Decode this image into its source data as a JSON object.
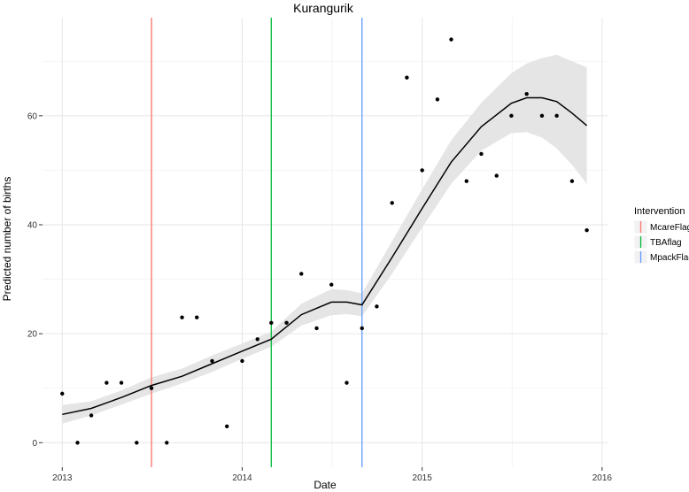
{
  "chart_data": {
    "type": "scatter",
    "title": "Kurangurik",
    "xlabel": "Date",
    "ylabel": "Predicted number of births",
    "x_ticks": [
      "2013",
      "2014",
      "2015",
      "2016"
    ],
    "y_ticks": [
      "0",
      "20",
      "40",
      "60"
    ],
    "xlim": [
      "2012-11-22",
      "2016-01-12"
    ],
    "ylim": [
      -4.5,
      78
    ],
    "grid": true,
    "points": [
      {
        "x": "2013-01",
        "y": 9
      },
      {
        "x": "2013-02",
        "y": 0
      },
      {
        "x": "2013-03",
        "y": 5
      },
      {
        "x": "2013-04",
        "y": 11
      },
      {
        "x": "2013-05",
        "y": 11
      },
      {
        "x": "2013-06",
        "y": 0
      },
      {
        "x": "2013-07",
        "y": 10
      },
      {
        "x": "2013-08",
        "y": 0
      },
      {
        "x": "2013-09",
        "y": 23
      },
      {
        "x": "2013-10",
        "y": 23
      },
      {
        "x": "2013-11",
        "y": 15
      },
      {
        "x": "2013-12",
        "y": 3
      },
      {
        "x": "2014-01",
        "y": 15
      },
      {
        "x": "2014-02",
        "y": 19
      },
      {
        "x": "2014-03",
        "y": 22
      },
      {
        "x": "2014-04",
        "y": 22
      },
      {
        "x": "2014-05",
        "y": 31
      },
      {
        "x": "2014-06",
        "y": 21
      },
      {
        "x": "2014-07",
        "y": 29
      },
      {
        "x": "2014-08",
        "y": 11
      },
      {
        "x": "2014-09",
        "y": 21
      },
      {
        "x": "2014-10",
        "y": 25
      },
      {
        "x": "2014-11",
        "y": 44
      },
      {
        "x": "2014-12",
        "y": 67
      },
      {
        "x": "2015-01",
        "y": 50
      },
      {
        "x": "2015-02",
        "y": 63
      },
      {
        "x": "2015-03",
        "y": 74
      },
      {
        "x": "2015-04",
        "y": 48
      },
      {
        "x": "2015-05",
        "y": 53
      },
      {
        "x": "2015-06",
        "y": 49
      },
      {
        "x": "2015-07",
        "y": 60
      },
      {
        "x": "2015-08",
        "y": 64
      },
      {
        "x": "2015-09",
        "y": 60
      },
      {
        "x": "2015-10",
        "y": 60
      },
      {
        "x": "2015-11",
        "y": 48
      },
      {
        "x": "2015-12",
        "y": 39
      }
    ],
    "fit": {
      "x": [
        "2013-01",
        "2013-03",
        "2013-05",
        "2013-07",
        "2013-09",
        "2013-11",
        "2014-01",
        "2014-03",
        "2014-05",
        "2014-07",
        "2014-08",
        "2014-09",
        "2014-11",
        "2015-01",
        "2015-03",
        "2015-05",
        "2015-07",
        "2015-08",
        "2015-09",
        "2015-10",
        "2015-11",
        "2015-12"
      ],
      "y": [
        5.2,
        6.3,
        8.3,
        10.5,
        12.2,
        14.5,
        16.8,
        19.0,
        23.5,
        25.8,
        25.8,
        25.3,
        34.0,
        43.0,
        51.5,
        58.0,
        62.3,
        63.3,
        63.3,
        62.6,
        60.5,
        58.2
      ],
      "lower": [
        3.5,
        5.0,
        7.0,
        9.0,
        10.9,
        13.0,
        15.4,
        17.6,
        21.5,
        23.4,
        23.6,
        23.2,
        31.0,
        39.5,
        47.5,
        53.6,
        56.8,
        57.0,
        56.0,
        54.0,
        51.0,
        47.5
      ],
      "upper": [
        6.9,
        7.6,
        9.6,
        12.0,
        13.6,
        16.0,
        18.2,
        20.4,
        25.5,
        28.2,
        28.0,
        27.4,
        37.0,
        46.5,
        55.5,
        62.4,
        67.8,
        69.6,
        70.6,
        71.2,
        70.0,
        68.9
      ]
    },
    "interventions": [
      {
        "name": "McareFlag",
        "x": "2013-07",
        "color": "#f8766d"
      },
      {
        "name": "TBAflag",
        "x": "2014-03",
        "color": "#00ba38"
      },
      {
        "name": "MpackFlag",
        "x": "2014-09",
        "color": "#619cff"
      }
    ],
    "legend": {
      "title": "Intervention",
      "position": "right"
    }
  }
}
